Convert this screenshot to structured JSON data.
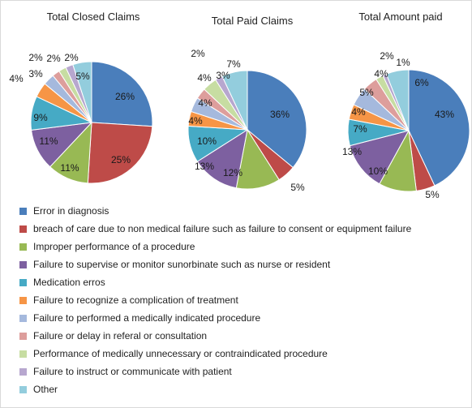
{
  "chart_data": [
    {
      "type": "pie",
      "title": "Total Closed Claims",
      "categories": [
        "Error in diagnosis",
        "breach of care due to non medical failure such as failure to consent or equipment failure",
        "Improper performance of a procedure",
        "Failure to supervise or monitor sunorbinate such as nurse or resident",
        "Medication erros",
        "Failure to recognize a complication of treatment",
        "Failure to performed a medically indicated procedure",
        "Failure or delay in referal or consultation",
        "Performance of medically unnecessary or contraindicated procedure",
        "Failure to instruct or communicate with patient",
        "Other"
      ],
      "values": [
        26,
        25,
        11,
        11,
        9,
        4,
        3,
        2,
        2,
        2,
        5
      ],
      "labels": [
        "26%",
        "25%",
        "11%",
        "11%",
        "9%",
        "4%",
        "3%",
        "2%",
        "2%",
        "2%",
        "5%"
      ]
    },
    {
      "type": "pie",
      "title": "Total Paid Claims",
      "categories": [
        "Error in diagnosis",
        "breach of care due to non medical failure such as failure to consent or equipment failure",
        "Improper performance of a procedure",
        "Failure to supervise or monitor sunorbinate such as nurse or resident",
        "Medication erros",
        "Failure to recognize a complication of treatment",
        "Failure to performed a medically indicated procedure",
        "Failure or delay in referal or consultation",
        "Performance of medically unnecessary or contraindicated procedure",
        "Failure to instruct or communicate with patient",
        "Other"
      ],
      "values": [
        36,
        5,
        12,
        13,
        10,
        4,
        4,
        3,
        4,
        2,
        7
      ],
      "labels": [
        "36%",
        "5%",
        "12%",
        "13%",
        "10%",
        "4%",
        "4%",
        "3%",
        "4%",
        "2%",
        "7%"
      ]
    },
    {
      "type": "pie",
      "title": "Total Amount paid",
      "categories": [
        "Error in diagnosis",
        "breach of care due to non medical failure such as failure to consent or equipment failure",
        "Improper performance of a procedure",
        "Failure to supervise or monitor sunorbinate such as nurse or resident",
        "Medication erros",
        "Failure to recognize a complication of treatment",
        "Failure to performed a medically indicated procedure",
        "Failure or delay in referal or consultation",
        "Performance of medically unnecessary or contraindicated procedure",
        "Failure to instruct or communicate with patient",
        "Other"
      ],
      "values": [
        43,
        5,
        10,
        13,
        7,
        4,
        5,
        4,
        2,
        1,
        6
      ],
      "labels": [
        "43%",
        "5%",
        "10%",
        "13%",
        "7%",
        "4%",
        "5%",
        "4%",
        "2%",
        "1%",
        "6%"
      ]
    }
  ],
  "legend": [
    {
      "label": "Error in diagnosis",
      "color": "#4A7EBB"
    },
    {
      "label": "breach of care due to non medical failure such as failure to consent or equipment failure",
      "color": "#BE4B48"
    },
    {
      "label": "Improper performance of a procedure",
      "color": "#98B954"
    },
    {
      "label": "Failure to supervise or monitor sunorbinate such as nurse or resident",
      "color": "#7D60A0"
    },
    {
      "label": "Medication erros",
      "color": "#46AAC5"
    },
    {
      "label": "Failure to recognize a complication of treatment",
      "color": "#F69546"
    },
    {
      "label": "Failure to performed a medically indicated procedure",
      "color": "#A5B9DD"
    },
    {
      "label": "Failure or delay in referal or consultation",
      "color": "#DD9E9C"
    },
    {
      "label": "Performance of medically unnecessary or contraindicated procedure",
      "color": "#C7DDA2"
    },
    {
      "label": "Failure to instruct or communicate with patient",
      "color": "#B7A7CF"
    },
    {
      "label": "Other",
      "color": "#93CDDD"
    }
  ]
}
